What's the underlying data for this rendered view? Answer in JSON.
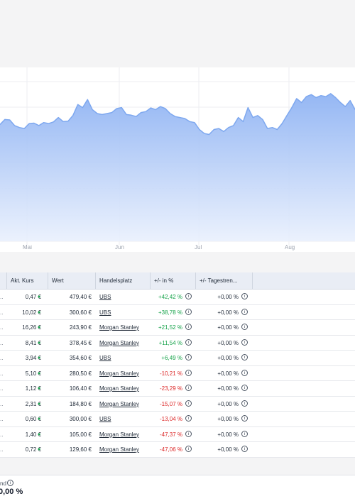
{
  "chart_data": {
    "type": "area",
    "x_ticks": [
      "Mai",
      "Jun",
      "Jul",
      "Aug"
    ],
    "series": [
      {
        "values": [
          58.5,
          61.0,
          60.8,
          58.0,
          57.0,
          56.5,
          59.0,
          59.2,
          58.0,
          59.5,
          59.0,
          59.8,
          62.0,
          60.0,
          60.2,
          63.0,
          68.5,
          67.0,
          71.0,
          66.0,
          64.0,
          63.5,
          64.0,
          64.5,
          66.5,
          67.0,
          63.5,
          63.2,
          62.5,
          64.5,
          65.0,
          66.8,
          66.0,
          67.5,
          66.5,
          64.0,
          62.5,
          62.0,
          61.5,
          60.0,
          59.5,
          56.0,
          54.0,
          53.5,
          56.0,
          56.5,
          55.0,
          57.0,
          58.0,
          62.0,
          60.0,
          67.0,
          62.0,
          63.0,
          61.0,
          56.5,
          57.0,
          56.0,
          59.0,
          63.0,
          67.0,
          71.5,
          69.5,
          72.5,
          73.5,
          72.0,
          73.0,
          72.5,
          74.0,
          72.0,
          69.5,
          67.5,
          70.5,
          66.0
        ]
      }
    ],
    "grid": true,
    "color": "#7ea8ef"
  },
  "table": {
    "columns": [
      "Akt. Kurs",
      "Wert",
      "Handelsplatz",
      "+/- in %",
      "+/- Tagestren..."
    ],
    "rows": [
      {
        "lead": "..",
        "kurs": "0,47 €",
        "wert": "479,40 €",
        "platz": "UBS",
        "pct": "+42,42 %",
        "pct_sign": "pos",
        "tag": "+0,00 %"
      },
      {
        "lead": "..",
        "kurs": "10,02 €",
        "wert": "300,60 €",
        "platz": "UBS",
        "pct": "+38,78 %",
        "pct_sign": "pos",
        "tag": "+0,00 %"
      },
      {
        "lead": "..",
        "kurs": "16,26 €",
        "wert": "243,90 €",
        "platz": "Morgan Stanley",
        "pct": "+21,52 %",
        "pct_sign": "pos",
        "tag": "+0,00 %"
      },
      {
        "lead": "..",
        "kurs": "8,41 €",
        "wert": "378,45 €",
        "platz": "Morgan Stanley",
        "pct": "+11,54 %",
        "pct_sign": "pos",
        "tag": "+0,00 %"
      },
      {
        "lead": "..",
        "kurs": "3,94 €",
        "wert": "354,60 €",
        "platz": "UBS",
        "pct": "+6,49 %",
        "pct_sign": "pos",
        "tag": "+0,00 %"
      },
      {
        "lead": "..",
        "kurs": "5,10 €",
        "wert": "280,50 €",
        "platz": "Morgan Stanley",
        "pct": "-10,21 %",
        "pct_sign": "neg",
        "tag": "+0,00 %"
      },
      {
        "lead": "..",
        "kurs": "1,12 €",
        "wert": "106,40 €",
        "platz": "Morgan Stanley",
        "pct": "-23,29 %",
        "pct_sign": "neg",
        "tag": "+0,00 %"
      },
      {
        "lead": "..",
        "kurs": "2,31 €",
        "wert": "184,80 €",
        "platz": "Morgan Stanley",
        "pct": "-15,07 %",
        "pct_sign": "neg",
        "tag": "+0,00 %"
      },
      {
        "lead": "..",
        "kurs": "0,60 €",
        "wert": "300,00 €",
        "platz": "UBS",
        "pct": "-13,04 %",
        "pct_sign": "neg",
        "tag": "+0,00 %"
      },
      {
        "lead": "..",
        "kurs": "1,40 €",
        "wert": "105,00 €",
        "platz": "Morgan Stanley",
        "pct": "-47,37 %",
        "pct_sign": "neg",
        "tag": "+0,00 %"
      },
      {
        "lead": "..",
        "kurs": "0,72 €",
        "wert": "129,60 €",
        "platz": "Morgan Stanley",
        "pct": "-47,06 %",
        "pct_sign": "neg",
        "tag": "+0,00 %"
      }
    ]
  },
  "footer": {
    "label": "nd",
    "value": "0,00 %"
  },
  "icons": {
    "info": "info-icon",
    "trend": "star-icon"
  },
  "colors": {
    "positive": "#16a34a",
    "negative": "#dc2626",
    "chart_line": "#7ea8ef",
    "header_bg": "#e9edf5"
  }
}
